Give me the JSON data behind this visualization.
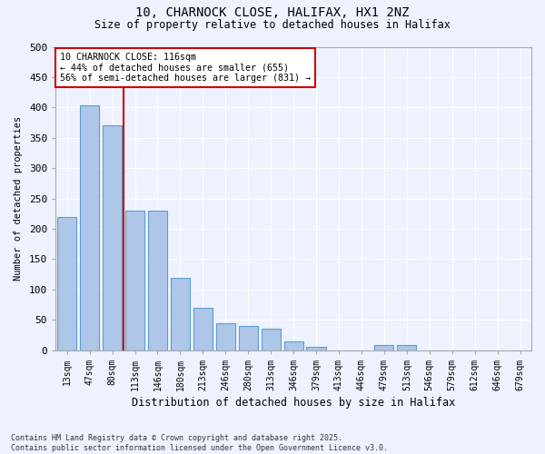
{
  "title_line1": "10, CHARNOCK CLOSE, HALIFAX, HX1 2NZ",
  "title_line2": "Size of property relative to detached houses in Halifax",
  "xlabel": "Distribution of detached houses by size in Halifax",
  "ylabel": "Number of detached properties",
  "categories": [
    "13sqm",
    "47sqm",
    "80sqm",
    "113sqm",
    "146sqm",
    "180sqm",
    "213sqm",
    "246sqm",
    "280sqm",
    "313sqm",
    "346sqm",
    "379sqm",
    "413sqm",
    "446sqm",
    "479sqm",
    "513sqm",
    "546sqm",
    "579sqm",
    "612sqm",
    "646sqm",
    "679sqm"
  ],
  "values": [
    220,
    403,
    370,
    230,
    230,
    120,
    70,
    45,
    40,
    35,
    15,
    5,
    0,
    0,
    8,
    8,
    0,
    0,
    0,
    0,
    0
  ],
  "bar_color": "#aec6e8",
  "bar_edge_color": "#5a9fd4",
  "vline_x": 2.5,
  "vline_color": "#cc0000",
  "annotation_text": "10 CHARNOCK CLOSE: 116sqm\n← 44% of detached houses are smaller (655)\n56% of semi-detached houses are larger (831) →",
  "annotation_box_color": "#ffffff",
  "annotation_box_edge_color": "#cc0000",
  "ylim": [
    0,
    500
  ],
  "yticks": [
    0,
    50,
    100,
    150,
    200,
    250,
    300,
    350,
    400,
    450,
    500
  ],
  "background_color": "#eef2ff",
  "grid_color": "#ffffff",
  "footer_line1": "Contains HM Land Registry data © Crown copyright and database right 2025.",
  "footer_line2": "Contains public sector information licensed under the Open Government Licence v3.0."
}
